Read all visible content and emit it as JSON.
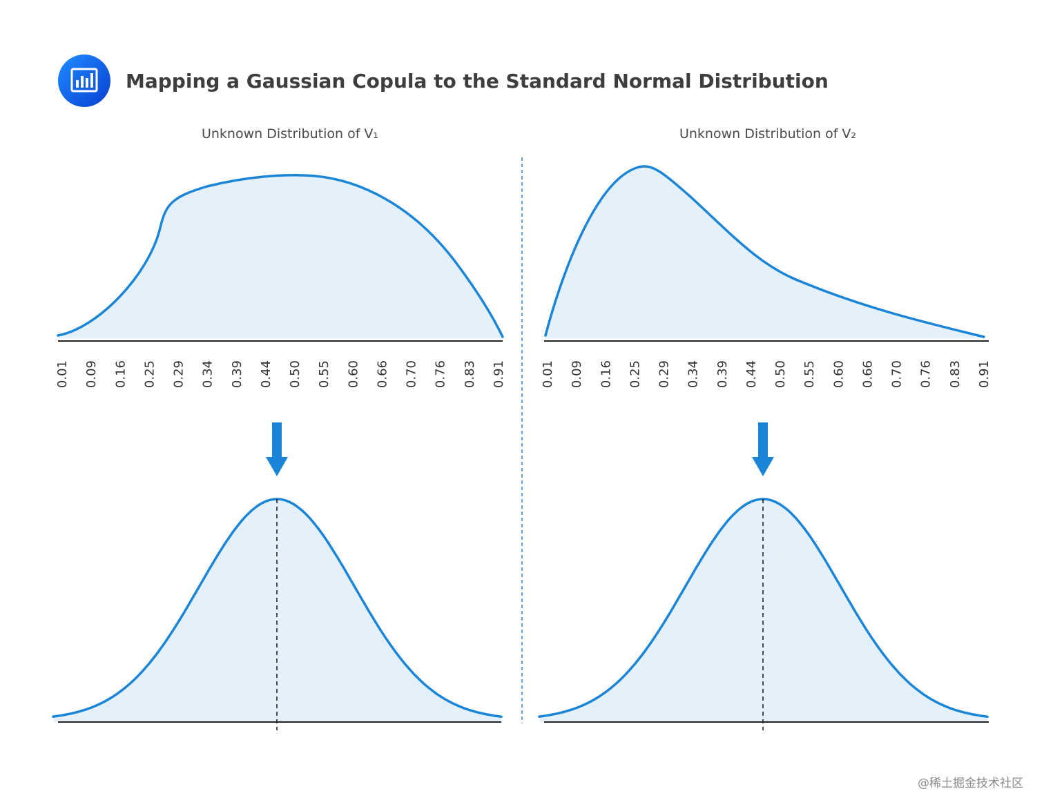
{
  "header": {
    "title": "Mapping a Gaussian Copula to the Standard Normal Distribution",
    "icon": "bar-chart-icon"
  },
  "panels": [
    {
      "label": "Unknown Distribution of V₁",
      "distribution": "unknown-v1",
      "x_ticks": [
        "0.01",
        "0.09",
        "0.16",
        "0.25",
        "0.29",
        "0.34",
        "0.39",
        "0.44",
        "0.50",
        "0.55",
        "0.60",
        "0.66",
        "0.70",
        "0.76",
        "0.83",
        "0.91"
      ]
    },
    {
      "label": "Unknown Distribution of V₂",
      "distribution": "unknown-v2",
      "x_ticks": [
        "0.01",
        "0.09",
        "0.16",
        "0.25",
        "0.29",
        "0.34",
        "0.39",
        "0.44",
        "0.50",
        "0.55",
        "0.60",
        "0.66",
        "0.70",
        "0.76",
        "0.83",
        "0.91"
      ]
    }
  ],
  "mapped": [
    {
      "distribution": "standard-normal"
    },
    {
      "distribution": "standard-normal"
    }
  ],
  "watermark": "@稀土掘金技术社区",
  "colors": {
    "curve": "#1a85d6",
    "fill": "#e4f1fb",
    "arrow": "#1a85d6",
    "icon_dark": "#0a3fd1",
    "icon_light": "#1e8cff",
    "divider": "#3a8fd8",
    "axis": "#222222",
    "title": "#3d3d3d"
  }
}
